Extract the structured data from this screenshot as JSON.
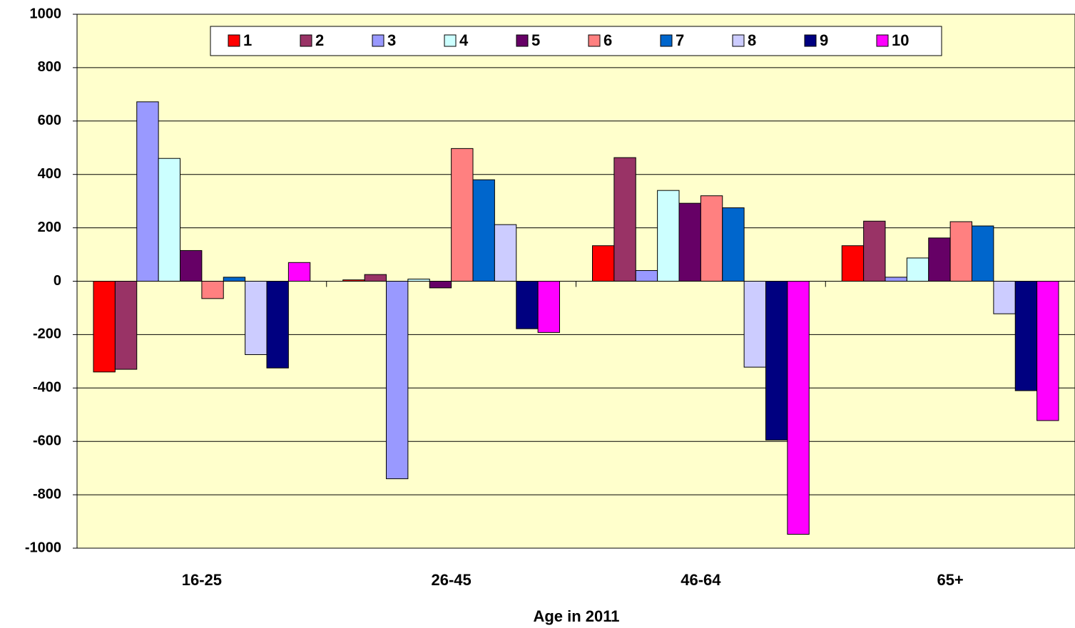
{
  "chart_data": {
    "type": "bar",
    "x_label": "Age in 2011",
    "categories": [
      "16-25",
      "26-45",
      "46-64",
      "65+"
    ],
    "series": [
      {
        "name": "1",
        "color": "#ff0000",
        "values": [
          -340,
          5,
          133,
          133
        ]
      },
      {
        "name": "2",
        "color": "#993366",
        "values": [
          -330,
          25,
          463,
          225
        ]
      },
      {
        "name": "3",
        "color": "#9999ff",
        "values": [
          672,
          -740,
          40,
          15
        ]
      },
      {
        "name": "4",
        "color": "#ccffff",
        "values": [
          460,
          8,
          340,
          87
        ]
      },
      {
        "name": "5",
        "color": "#660066",
        "values": [
          115,
          -25,
          292,
          162
        ]
      },
      {
        "name": "6",
        "color": "#ff8080",
        "values": [
          -65,
          497,
          320,
          223
        ]
      },
      {
        "name": "7",
        "color": "#0066cc",
        "values": [
          15,
          380,
          275,
          207
        ]
      },
      {
        "name": "8",
        "color": "#ccccff",
        "values": [
          -275,
          212,
          -322,
          -122
        ]
      },
      {
        "name": "9",
        "color": "#000080",
        "values": [
          -325,
          -178,
          -595,
          -410
        ]
      },
      {
        "name": "10",
        "color": "#ff00ff",
        "values": [
          70,
          -192,
          -948,
          -522
        ]
      }
    ],
    "ylim": [
      -1000,
      1000
    ],
    "yticks": [
      -1000,
      -800,
      -600,
      -400,
      -200,
      0,
      200,
      400,
      600,
      800,
      1000
    ],
    "grid": true,
    "legend": "top"
  }
}
